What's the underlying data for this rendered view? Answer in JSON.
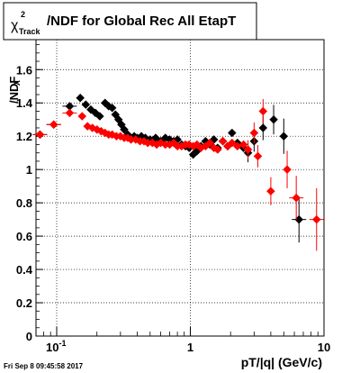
{
  "title_prefix": "χ",
  "title_sup": "2",
  "title_sub": "Track",
  "title_suffix": "/NDF for Global Rec All EtapT",
  "ylabel": "/NDF",
  "ylabel_chi": "χ",
  "ylabel_sup": "2",
  "ylabel_sub": "Track",
  "xlabel": "pT/|q| (GeV/c)",
  "timestamp": "Fri Sep  8 09:45:58 2017",
  "colors": {
    "series1": "#000000",
    "series2": "#ff0000",
    "grid": "#000000"
  },
  "chart_data": {
    "type": "scatter",
    "x_scale": "log",
    "xlim": [
      0.07,
      10
    ],
    "ylim": [
      0,
      1.78
    ],
    "grid": true,
    "x_ticks": [
      "10^-1",
      "1",
      "10"
    ],
    "y_ticks": [
      "0",
      "0.2",
      "0.4",
      "0.6",
      "0.8",
      "1",
      "1.2",
      "1.4",
      "1.6"
    ],
    "series": [
      {
        "color": "#000000",
        "points": [
          {
            "x": 0.075,
            "y": 1.21
          },
          {
            "x": 0.095,
            "y": 1.27
          },
          {
            "x": 0.125,
            "y": 1.38
          },
          {
            "x": 0.15,
            "y": 1.43
          },
          {
            "x": 0.165,
            "y": 1.39
          },
          {
            "x": 0.18,
            "y": 1.36
          },
          {
            "x": 0.195,
            "y": 1.34
          },
          {
            "x": 0.21,
            "y": 1.32
          },
          {
            "x": 0.23,
            "y": 1.4
          },
          {
            "x": 0.245,
            "y": 1.38
          },
          {
            "x": 0.26,
            "y": 1.37
          },
          {
            "x": 0.275,
            "y": 1.33
          },
          {
            "x": 0.29,
            "y": 1.3
          },
          {
            "x": 0.305,
            "y": 1.27
          },
          {
            "x": 0.32,
            "y": 1.24
          },
          {
            "x": 0.34,
            "y": 1.21
          },
          {
            "x": 0.36,
            "y": 1.19
          },
          {
            "x": 0.38,
            "y": 1.2
          },
          {
            "x": 0.4,
            "y": 1.19
          },
          {
            "x": 0.43,
            "y": 1.2
          },
          {
            "x": 0.46,
            "y": 1.19
          },
          {
            "x": 0.5,
            "y": 1.18
          },
          {
            "x": 0.55,
            "y": 1.19
          },
          {
            "x": 0.6,
            "y": 1.17
          },
          {
            "x": 0.65,
            "y": 1.19
          },
          {
            "x": 0.7,
            "y": 1.18
          },
          {
            "x": 0.75,
            "y": 1.17
          },
          {
            "x": 0.8,
            "y": 1.18
          },
          {
            "x": 0.86,
            "y": 1.15
          },
          {
            "x": 0.92,
            "y": 1.14
          },
          {
            "x": 0.98,
            "y": 1.13
          },
          {
            "x": 1.05,
            "y": 1.09
          },
          {
            "x": 1.12,
            "y": 1.11
          },
          {
            "x": 1.2,
            "y": 1.14
          },
          {
            "x": 1.3,
            "y": 1.17
          },
          {
            "x": 1.4,
            "y": 1.15
          },
          {
            "x": 1.5,
            "y": 1.18
          },
          {
            "x": 1.6,
            "y": 1.13
          },
          {
            "x": 1.75,
            "y": 1.17
          },
          {
            "x": 1.9,
            "y": 1.14
          },
          {
            "x": 2.05,
            "y": 1.22
          },
          {
            "x": 2.25,
            "y": 1.16
          },
          {
            "x": 2.5,
            "y": 1.13
          },
          {
            "x": 2.7,
            "y": 1.1
          },
          {
            "x": 3.0,
            "y": 1.17
          },
          {
            "x": 3.5,
            "y": 1.25
          },
          {
            "x": 4.2,
            "y": 1.3
          },
          {
            "x": 5.0,
            "y": 1.2
          },
          {
            "x": 6.5,
            "y": 0.7
          }
        ]
      },
      {
        "color": "#ff0000",
        "points": [
          {
            "x": 0.075,
            "y": 1.21
          },
          {
            "x": 0.095,
            "y": 1.27
          },
          {
            "x": 0.125,
            "y": 1.34
          },
          {
            "x": 0.155,
            "y": 1.32
          },
          {
            "x": 0.17,
            "y": 1.26
          },
          {
            "x": 0.185,
            "y": 1.25
          },
          {
            "x": 0.2,
            "y": 1.24
          },
          {
            "x": 0.215,
            "y": 1.23
          },
          {
            "x": 0.23,
            "y": 1.22
          },
          {
            "x": 0.245,
            "y": 1.21
          },
          {
            "x": 0.26,
            "y": 1.21
          },
          {
            "x": 0.28,
            "y": 1.2
          },
          {
            "x": 0.3,
            "y": 1.2
          },
          {
            "x": 0.32,
            "y": 1.19
          },
          {
            "x": 0.34,
            "y": 1.19
          },
          {
            "x": 0.36,
            "y": 1.18
          },
          {
            "x": 0.39,
            "y": 1.18
          },
          {
            "x": 0.42,
            "y": 1.17
          },
          {
            "x": 0.45,
            "y": 1.17
          },
          {
            "x": 0.48,
            "y": 1.16
          },
          {
            "x": 0.52,
            "y": 1.16
          },
          {
            "x": 0.56,
            "y": 1.15
          },
          {
            "x": 0.6,
            "y": 1.16
          },
          {
            "x": 0.65,
            "y": 1.15
          },
          {
            "x": 0.7,
            "y": 1.15
          },
          {
            "x": 0.75,
            "y": 1.16
          },
          {
            "x": 0.8,
            "y": 1.14
          },
          {
            "x": 0.86,
            "y": 1.14
          },
          {
            "x": 0.92,
            "y": 1.15
          },
          {
            "x": 0.98,
            "y": 1.15
          },
          {
            "x": 1.05,
            "y": 1.14
          },
          {
            "x": 1.12,
            "y": 1.15
          },
          {
            "x": 1.2,
            "y": 1.13
          },
          {
            "x": 1.3,
            "y": 1.14
          },
          {
            "x": 1.4,
            "y": 1.16
          },
          {
            "x": 1.5,
            "y": 1.13
          },
          {
            "x": 1.6,
            "y": 1.12
          },
          {
            "x": 1.75,
            "y": 1.17
          },
          {
            "x": 1.9,
            "y": 1.14
          },
          {
            "x": 2.05,
            "y": 1.16
          },
          {
            "x": 2.25,
            "y": 1.14
          },
          {
            "x": 2.5,
            "y": 1.15
          },
          {
            "x": 2.7,
            "y": 1.12
          },
          {
            "x": 3.0,
            "y": 1.22
          },
          {
            "x": 3.2,
            "y": 1.08
          },
          {
            "x": 3.5,
            "y": 1.35
          },
          {
            "x": 4.0,
            "y": 0.87
          },
          {
            "x": 5.3,
            "y": 1.0
          },
          {
            "x": 6.2,
            "y": 0.83
          },
          {
            "x": 8.8,
            "y": 0.7
          }
        ]
      }
    ]
  }
}
